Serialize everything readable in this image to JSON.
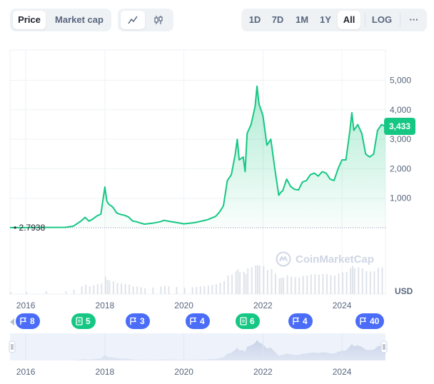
{
  "toolbar": {
    "price_label": "Price",
    "marketcap_label": "Market cap",
    "line_icon": "line-chart-icon",
    "candle_icon": "candlestick-icon",
    "range_buttons": [
      "1D",
      "7D",
      "1M",
      "1Y",
      "All"
    ],
    "active_range": "All",
    "log_label": "LOG",
    "more_label": "···"
  },
  "colors": {
    "line": "#16c784",
    "badge": "#16c784",
    "flag_blue": "#4a6cf7",
    "flag_green": "#16c784",
    "grid": "#eff2f5"
  },
  "badge_value": "3,433",
  "watermark": "CoinMarketCap",
  "start_price_label": "2.7938",
  "currency_label": "USD",
  "flags": [
    {
      "label": "8",
      "icon": "flag-icon",
      "color": "blue"
    },
    {
      "label": "5",
      "icon": "document-icon",
      "color": "green"
    },
    {
      "label": "3",
      "icon": "flag-icon",
      "color": "blue"
    },
    {
      "label": "4",
      "icon": "flag-icon",
      "color": "blue"
    },
    {
      "label": "6",
      "icon": "document-icon",
      "color": "green"
    },
    {
      "label": "4",
      "icon": "flag-icon",
      "color": "blue"
    },
    {
      "label": "40",
      "icon": "flag-icon",
      "color": "blue"
    }
  ],
  "chart_data": {
    "type": "area",
    "x_tick_labels": [
      "2016",
      "2018",
      "2020",
      "2022",
      "2024"
    ],
    "y_tick_labels": [
      "1,000",
      "2,000",
      "3,000",
      "4,000",
      "5,000"
    ],
    "ylim": [
      0,
      5500
    ],
    "xlim": [
      2015.6,
      2025.1
    ],
    "grid": true,
    "ylabel": "USD",
    "series": [
      {
        "x": [
          2015.6,
          2016.0,
          2016.5,
          2017.0,
          2017.2,
          2017.4,
          2017.5,
          2017.6,
          2017.7,
          2017.8,
          2017.9,
          2018.0,
          2018.05,
          2018.1,
          2018.2,
          2018.3,
          2018.4,
          2018.5,
          2018.6,
          2018.7,
          2018.8,
          2018.9,
          2019.0,
          2019.2,
          2019.4,
          2019.5,
          2019.6,
          2019.8,
          2020.0,
          2020.2,
          2020.3,
          2020.4,
          2020.5,
          2020.6,
          2020.7,
          2020.8,
          2020.9,
          2021.0,
          2021.1,
          2021.2,
          2021.3,
          2021.35,
          2021.4,
          2021.5,
          2021.55,
          2021.6,
          2021.7,
          2021.8,
          2021.85,
          2021.9,
          2022.0,
          2022.1,
          2022.2,
          2022.3,
          2022.4,
          2022.45,
          2022.5,
          2022.6,
          2022.7,
          2022.8,
          2022.9,
          2023.0,
          2023.1,
          2023.2,
          2023.3,
          2023.4,
          2023.5,
          2023.6,
          2023.7,
          2023.8,
          2023.9,
          2024.0,
          2024.1,
          2024.2,
          2024.25,
          2024.3,
          2024.4,
          2024.5,
          2024.6,
          2024.7,
          2024.8,
          2024.9,
          2025.0,
          2025.1
        ],
        "y": [
          2.8,
          3,
          10,
          12,
          50,
          230,
          350,
          220,
          300,
          400,
          460,
          1380,
          900,
          800,
          700,
          500,
          450,
          420,
          360,
          230,
          200,
          160,
          120,
          150,
          200,
          250,
          220,
          180,
          130,
          160,
          180,
          210,
          240,
          270,
          330,
          380,
          530,
          740,
          1600,
          1800,
          2500,
          3000,
          2300,
          2400,
          1900,
          3200,
          3500,
          4100,
          4800,
          4200,
          3800,
          2800,
          3000,
          2000,
          1100,
          1200,
          1250,
          1650,
          1400,
          1300,
          1280,
          1550,
          1600,
          1800,
          1850,
          1750,
          1900,
          1850,
          1650,
          1600,
          2000,
          2300,
          2300,
          3300,
          3900,
          3300,
          3500,
          3200,
          2500,
          2400,
          2500,
          3300,
          3500,
          3433
        ]
      }
    ]
  }
}
